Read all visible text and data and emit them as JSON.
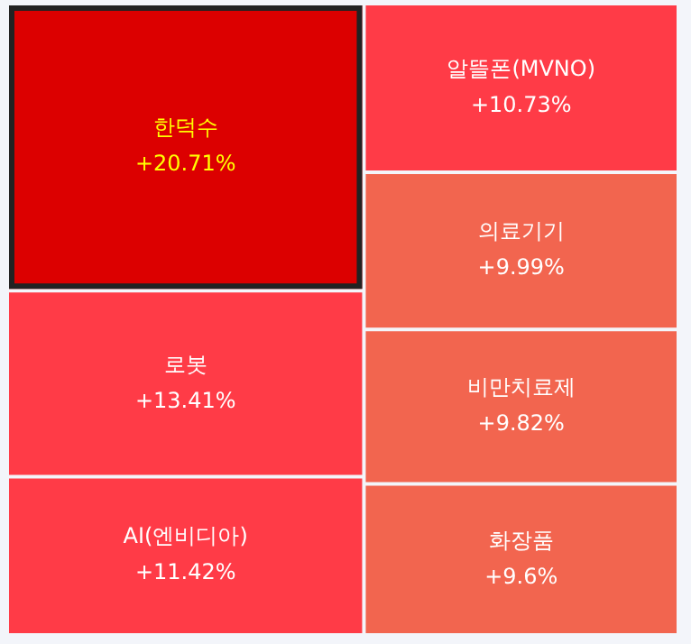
{
  "chart_data": {
    "type": "other",
    "categories": [
      "한덕수",
      "로봇",
      "AI(엔비디아)",
      "알뜰폰(MVNO)",
      "의료기기",
      "비만치료제",
      "화장품"
    ],
    "values": [
      20.71,
      13.41,
      11.42,
      10.73,
      9.99,
      9.82,
      9.6
    ],
    "value_labels": [
      "+20.71%",
      "+13.41%",
      "+11.42%",
      "+10.73%",
      "+9.99%",
      "+9.82%",
      "+9.6%"
    ],
    "colors": [
      "#dc0000",
      "#ff3b47",
      "#ff3b47",
      "#ff3b47",
      "#f2654f",
      "#f2654f",
      "#f2654f"
    ]
  }
}
